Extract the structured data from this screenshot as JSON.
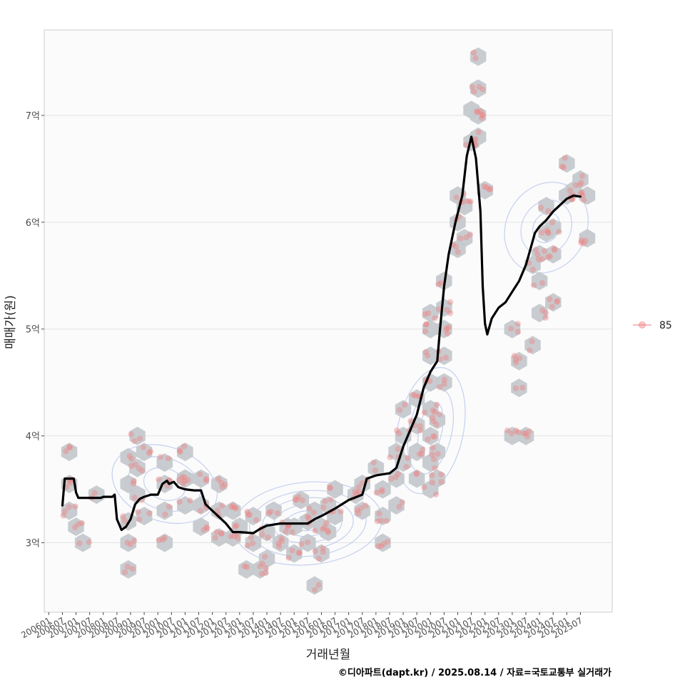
{
  "chart_data": {
    "type": "scatter",
    "xlabel": "거래년월",
    "ylabel": "매매가(원)",
    "caption": "©디아파트(dapt.kr) / 2025.08.14 / 자료=국토교통부 실거래가",
    "x_ticks": [
      "200601",
      "200607",
      "200701",
      "200707",
      "200801",
      "200807",
      "200901",
      "200907",
      "201001",
      "201007",
      "201101",
      "201107",
      "201201",
      "201207",
      "201301",
      "201307",
      "201401",
      "201407",
      "201501",
      "201507",
      "201601",
      "201607",
      "201701",
      "201707",
      "201801",
      "201807",
      "201901",
      "201907",
      "202001",
      "202007",
      "202101",
      "202107",
      "202201",
      "202207",
      "202301",
      "202307",
      "202401",
      "202407",
      "202501",
      "202507"
    ],
    "y_ticks": [
      {
        "value": 3.0,
        "label": "3억"
      },
      {
        "value": 4.0,
        "label": "4억"
      },
      {
        "value": 5.0,
        "label": "5억"
      },
      {
        "value": 6.0,
        "label": "6억"
      },
      {
        "value": 7.0,
        "label": "7억"
      }
    ],
    "xlim": [
      "200511",
      "202609"
    ],
    "ylim_eok": [
      2.35,
      7.8
    ],
    "grid": true,
    "legend": {
      "position": "right",
      "entries": [
        {
          "label": "85",
          "color": "#f08080"
        }
      ]
    },
    "colors": {
      "hex_bins": "#c5c9cd",
      "points": "#f08080",
      "trend_line": "#000000",
      "density_contours": "#b4c2ee",
      "grid": "#e3e3e3",
      "panel_border": "#cccccc"
    },
    "hex_bins": [
      {
        "x": "200610",
        "y": 3.85
      },
      {
        "x": "200610",
        "y": 3.55
      },
      {
        "x": "200610",
        "y": 3.3
      },
      {
        "x": "200701",
        "y": 3.15
      },
      {
        "x": "200704",
        "y": 3.0
      },
      {
        "x": "200710",
        "y": 3.45
      },
      {
        "x": "200812",
        "y": 3.55
      },
      {
        "x": "200812",
        "y": 3.8
      },
      {
        "x": "200812",
        "y": 3.2
      },
      {
        "x": "200812",
        "y": 3.0
      },
      {
        "x": "200812",
        "y": 2.75
      },
      {
        "x": "200904",
        "y": 3.45
      },
      {
        "x": "200904",
        "y": 3.7
      },
      {
        "x": "200904",
        "y": 4.0
      },
      {
        "x": "200907",
        "y": 3.85
      },
      {
        "x": "200907",
        "y": 3.25
      },
      {
        "x": "201004",
        "y": 3.55
      },
      {
        "x": "201004",
        "y": 3.3
      },
      {
        "x": "201004",
        "y": 3.0
      },
      {
        "x": "201004",
        "y": 3.75
      },
      {
        "x": "201101",
        "y": 3.85
      },
      {
        "x": "201101",
        "y": 3.6
      },
      {
        "x": "201101",
        "y": 3.35
      },
      {
        "x": "201101",
        "y": 3.6
      },
      {
        "x": "201108",
        "y": 3.6
      },
      {
        "x": "201108",
        "y": 3.35
      },
      {
        "x": "201108",
        "y": 3.15
      },
      {
        "x": "201204",
        "y": 3.55
      },
      {
        "x": "201204",
        "y": 3.3
      },
      {
        "x": "201204",
        "y": 3.05
      },
      {
        "x": "201210",
        "y": 3.3
      },
      {
        "x": "201210",
        "y": 3.05
      },
      {
        "x": "201301",
        "y": 3.15
      },
      {
        "x": "201307",
        "y": 3.0
      },
      {
        "x": "201307",
        "y": 3.25
      },
      {
        "x": "201304",
        "y": 2.75
      },
      {
        "x": "201310",
        "y": 2.75
      },
      {
        "x": "201401",
        "y": 3.1
      },
      {
        "x": "201401",
        "y": 2.85
      },
      {
        "x": "201404",
        "y": 3.3
      },
      {
        "x": "201407",
        "y": 3.0
      },
      {
        "x": "201410",
        "y": 3.15
      },
      {
        "x": "201501",
        "y": 2.9
      },
      {
        "x": "201501",
        "y": 3.15
      },
      {
        "x": "201504",
        "y": 3.4
      },
      {
        "x": "201507",
        "y": 3.2
      },
      {
        "x": "201507",
        "y": 3.0
      },
      {
        "x": "201510",
        "y": 3.3
      },
      {
        "x": "201601",
        "y": 3.15
      },
      {
        "x": "201601",
        "y": 2.9
      },
      {
        "x": "201604",
        "y": 3.35
      },
      {
        "x": "201604",
        "y": 3.1
      },
      {
        "x": "201607",
        "y": 3.25
      },
      {
        "x": "201607",
        "y": 3.5
      },
      {
        "x": "201510",
        "y": 2.6
      },
      {
        "x": "201704",
        "y": 3.45
      },
      {
        "x": "201707",
        "y": 3.55
      },
      {
        "x": "201707",
        "y": 3.3
      },
      {
        "x": "201801",
        "y": 3.7
      },
      {
        "x": "201804",
        "y": 3.5
      },
      {
        "x": "201804",
        "y": 3.25
      },
      {
        "x": "201804",
        "y": 3.0
      },
      {
        "x": "201810",
        "y": 3.6
      },
      {
        "x": "201810",
        "y": 3.85
      },
      {
        "x": "201810",
        "y": 3.35
      },
      {
        "x": "201901",
        "y": 3.75
      },
      {
        "x": "201901",
        "y": 4.0
      },
      {
        "x": "201901",
        "y": 4.25
      },
      {
        "x": "201907",
        "y": 3.6
      },
      {
        "x": "201907",
        "y": 3.85
      },
      {
        "x": "201907",
        "y": 4.1
      },
      {
        "x": "201907",
        "y": 4.35
      },
      {
        "x": "202001",
        "y": 3.5
      },
      {
        "x": "202001",
        "y": 3.75
      },
      {
        "x": "202001",
        "y": 4.0
      },
      {
        "x": "202001",
        "y": 4.25
      },
      {
        "x": "202001",
        "y": 4.5
      },
      {
        "x": "202001",
        "y": 4.75
      },
      {
        "x": "202001",
        "y": 5.0
      },
      {
        "x": "202001",
        "y": 5.15
      },
      {
        "x": "202007",
        "y": 4.5
      },
      {
        "x": "202007",
        "y": 4.75
      },
      {
        "x": "202007",
        "y": 5.0
      },
      {
        "x": "202007",
        "y": 5.2
      },
      {
        "x": "202007",
        "y": 5.45
      },
      {
        "x": "202004",
        "y": 3.6
      },
      {
        "x": "202004",
        "y": 3.85
      },
      {
        "x": "202004",
        "y": 4.15
      },
      {
        "x": "202101",
        "y": 5.75
      },
      {
        "x": "202101",
        "y": 6.0
      },
      {
        "x": "202101",
        "y": 6.25
      },
      {
        "x": "202104",
        "y": 6.15
      },
      {
        "x": "202104",
        "y": 5.85
      },
      {
        "x": "202107",
        "y": 6.75
      },
      {
        "x": "202107",
        "y": 7.05
      },
      {
        "x": "202110",
        "y": 7.25
      },
      {
        "x": "202110",
        "y": 7.55
      },
      {
        "x": "202110",
        "y": 7.0
      },
      {
        "x": "202110",
        "y": 6.8
      },
      {
        "x": "202201",
        "y": 6.3
      },
      {
        "x": "202301",
        "y": 5.0
      },
      {
        "x": "202301",
        "y": 4.0
      },
      {
        "x": "202307",
        "y": 4.0
      },
      {
        "x": "202304",
        "y": 4.45
      },
      {
        "x": "202304",
        "y": 4.7
      },
      {
        "x": "202310",
        "y": 4.85
      },
      {
        "x": "202401",
        "y": 5.15
      },
      {
        "x": "202401",
        "y": 5.45
      },
      {
        "x": "202401",
        "y": 5.7
      },
      {
        "x": "202310",
        "y": 5.6
      },
      {
        "x": "202404",
        "y": 5.9
      },
      {
        "x": "202404",
        "y": 6.15
      },
      {
        "x": "202407",
        "y": 5.7
      },
      {
        "x": "202407",
        "y": 5.95
      },
      {
        "x": "202407",
        "y": 5.25
      },
      {
        "x": "202501",
        "y": 6.55
      },
      {
        "x": "202501",
        "y": 6.25
      },
      {
        "x": "202504",
        "y": 6.3
      },
      {
        "x": "202507",
        "y": 6.4
      },
      {
        "x": "202510",
        "y": 6.25
      },
      {
        "x": "202510",
        "y": 5.85
      }
    ],
    "trend_line": [
      {
        "x": "200607",
        "y": 3.35
      },
      {
        "x": "200608",
        "y": 3.6
      },
      {
        "x": "200612",
        "y": 3.6
      },
      {
        "x": "200701",
        "y": 3.47
      },
      {
        "x": "200702",
        "y": 3.42
      },
      {
        "x": "200712",
        "y": 3.42
      },
      {
        "x": "200801",
        "y": 3.43
      },
      {
        "x": "200805",
        "y": 3.43
      },
      {
        "x": "200806",
        "y": 3.45
      },
      {
        "x": "200807",
        "y": 3.22
      },
      {
        "x": "200809",
        "y": 3.12
      },
      {
        "x": "200811",
        "y": 3.15
      },
      {
        "x": "200901",
        "y": 3.22
      },
      {
        "x": "200903",
        "y": 3.36
      },
      {
        "x": "200905",
        "y": 3.41
      },
      {
        "x": "200907",
        "y": 3.43
      },
      {
        "x": "200910",
        "y": 3.45
      },
      {
        "x": "201001",
        "y": 3.45
      },
      {
        "x": "201003",
        "y": 3.55
      },
      {
        "x": "201005",
        "y": 3.58
      },
      {
        "x": "201006",
        "y": 3.55
      },
      {
        "x": "201008",
        "y": 3.57
      },
      {
        "x": "201010",
        "y": 3.52
      },
      {
        "x": "201101",
        "y": 3.5
      },
      {
        "x": "201105",
        "y": 3.49
      },
      {
        "x": "201108",
        "y": 3.49
      },
      {
        "x": "201110",
        "y": 3.36
      },
      {
        "x": "201201",
        "y": 3.3
      },
      {
        "x": "201207",
        "y": 3.18
      },
      {
        "x": "201210",
        "y": 3.1
      },
      {
        "x": "201301",
        "y": 3.1
      },
      {
        "x": "201307",
        "y": 3.09
      },
      {
        "x": "201310",
        "y": 3.13
      },
      {
        "x": "201401",
        "y": 3.16
      },
      {
        "x": "201407",
        "y": 3.18
      },
      {
        "x": "201501",
        "y": 3.18
      },
      {
        "x": "201507",
        "y": 3.18
      },
      {
        "x": "201510",
        "y": 3.22
      },
      {
        "x": "201601",
        "y": 3.25
      },
      {
        "x": "201607",
        "y": 3.32
      },
      {
        "x": "201701",
        "y": 3.4
      },
      {
        "x": "201707",
        "y": 3.45
      },
      {
        "x": "201709",
        "y": 3.6
      },
      {
        "x": "201801",
        "y": 3.63
      },
      {
        "x": "201807",
        "y": 3.65
      },
      {
        "x": "201810",
        "y": 3.7
      },
      {
        "x": "201901",
        "y": 3.9
      },
      {
        "x": "201904",
        "y": 4.05
      },
      {
        "x": "201907",
        "y": 4.2
      },
      {
        "x": "201910",
        "y": 4.45
      },
      {
        "x": "202001",
        "y": 4.6
      },
      {
        "x": "202004",
        "y": 4.7
      },
      {
        "x": "202005",
        "y": 4.95
      },
      {
        "x": "202007",
        "y": 5.4
      },
      {
        "x": "202009",
        "y": 5.7
      },
      {
        "x": "202012",
        "y": 6.0
      },
      {
        "x": "202103",
        "y": 6.25
      },
      {
        "x": "202105",
        "y": 6.62
      },
      {
        "x": "202107",
        "y": 6.8
      },
      {
        "x": "202109",
        "y": 6.6
      },
      {
        "x": "202111",
        "y": 6.1
      },
      {
        "x": "202112",
        "y": 5.4
      },
      {
        "x": "202201",
        "y": 5.05
      },
      {
        "x": "202202",
        "y": 4.95
      },
      {
        "x": "202204",
        "y": 5.1
      },
      {
        "x": "202207",
        "y": 5.2
      },
      {
        "x": "202210",
        "y": 5.25
      },
      {
        "x": "202301",
        "y": 5.35
      },
      {
        "x": "202304",
        "y": 5.45
      },
      {
        "x": "202307",
        "y": 5.6
      },
      {
        "x": "202309",
        "y": 5.75
      },
      {
        "x": "202311",
        "y": 5.9
      },
      {
        "x": "202401",
        "y": 5.96
      },
      {
        "x": "202404",
        "y": 6.02
      },
      {
        "x": "202407",
        "y": 6.1
      },
      {
        "x": "202410",
        "y": 6.16
      },
      {
        "x": "202501",
        "y": 6.22
      },
      {
        "x": "202504",
        "y": 6.25
      },
      {
        "x": "202507",
        "y": 6.24
      }
    ]
  }
}
